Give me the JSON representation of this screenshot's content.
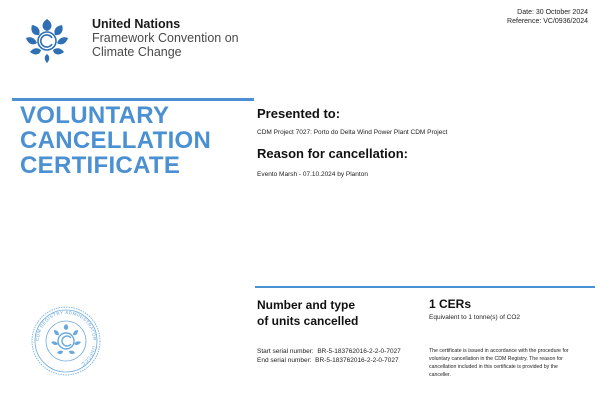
{
  "header": {
    "org_name": "United Nations",
    "org_subtitle_line1": "Framework Convention on",
    "org_subtitle_line2": "Climate Change",
    "date": "Date: 30 October 2024",
    "reference": "Reference: VC/0936/2024"
  },
  "certificate": {
    "title_line1": "VOLUNTARY",
    "title_line2": "CANCELLATION",
    "title_line3": "CERTIFICATE",
    "presented_to_heading": "Presented to:",
    "presented_to_value": "CDM Project 7027: Porto do Delta Wind Power Plant CDM Project",
    "reason_heading": "Reason for cancellation:",
    "reason_value": "Evento Marsh - 07.10.2024 by Planton"
  },
  "units": {
    "label_line1": "Number and type",
    "label_line2": "of units cancelled",
    "amount": "1 CERs",
    "equivalent": "Equivalent to 1 tonne(s) of CO2",
    "start_serial": "Start serial number:  BR-5-183762016-2-2-0-7027",
    "end_serial": "End serial number:  BR-5-183762016-2-2-0-7027",
    "notice_line1": "The certificate is issued in accordance with the procedure for",
    "notice_line2": "voluntary cancellation in the CDM Registry. The reason for",
    "notice_line3": "cancellation included in this certificate is provided by the",
    "notice_line4": "canceller."
  },
  "seal": {
    "text": "CDM REGISTRY ADMINISTRATOR · UNFCCC"
  },
  "colors": {
    "accent": "#4a90d2",
    "text": "#1a1a1a"
  },
  "icons": [
    "unfccc-logo-icon",
    "registry-seal-icon"
  ]
}
